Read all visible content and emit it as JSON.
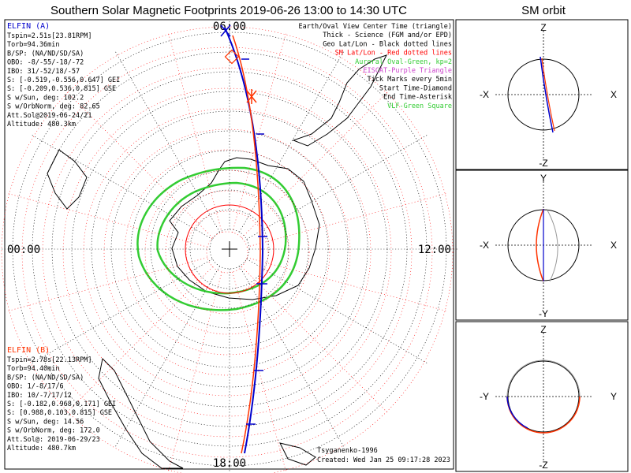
{
  "chart_data": {
    "type": "scatter",
    "title": "Southern Solar Magnetic Footprints 2019-06-26 13:00 to 14:30 UTC",
    "polar_plot": {
      "time_labels": {
        "top": "06:00",
        "left": "00:00",
        "right": "12:00",
        "bottom": "18:00"
      },
      "legend": [
        {
          "text": "Earth/Oval View Center Time (triangle)",
          "color": "#000000"
        },
        {
          "text": "Thick - Science (FGM and/or EPD)",
          "color": "#000000"
        },
        {
          "text": "Geo Lat/Lon - Black dotted lines",
          "color": "#000000"
        },
        {
          "text": "SM Lat/Lon - Red dotted lines",
          "color": "#ff0000"
        },
        {
          "text": "Auroral Oval-Green, kp=2",
          "color": "#33cc33"
        },
        {
          "text": "EISCAT-Purple Triangle",
          "color": "#cc44cc"
        },
        {
          "text": "Tick Marks every 5min",
          "color": "#000000"
        },
        {
          "text": "Start Time-Diamond",
          "color": "#000000"
        },
        {
          "text": "End Time-Asterisk",
          "color": "#000000"
        },
        {
          "text": "VLF-Green Square",
          "color": "#33cc33"
        }
      ],
      "spacecraft_a": {
        "name": "ELFIN (A)",
        "color": "#0000cc",
        "lines": [
          "Tspin=2.51s[23.81RPM]",
          "Torb=94.36min",
          "B/SP: (NA/ND/SD/SA)",
          "OBO: -8/-55/-18/-72",
          "IBO: 31/-52/18/-57",
          "S: [-0.519,-0.556,0.647] GEI",
          "S: [-0.209,0.536,0.815] GSE",
          "S w/Sun, deg: 102.2",
          "S w/OrbNorm, deg: 82.65",
          "Att.Sol@2019-06-24/21",
          "Altitude: 480.3km"
        ]
      },
      "spacecraft_b": {
        "name": "ELFIN (B)",
        "color": "#ff3300",
        "lines": [
          "Tspin=2.78s[22.13RPM]",
          "Torb=94.40min",
          "B/SP: (NA/ND/SD/SA)",
          "OBO: 1/-8/17/6",
          "IBO: 10/-7/17/12",
          "S: [-0.182,0.968,0.171] GEI",
          "S: [0.988,0.103,0.815] GSE",
          "S w/Sun, deg: 14.56",
          "S w/OrbNorm, deg: 172.0",
          "Att.Sol@: 2019-06-29/23",
          "Altitude: 480.7km"
        ]
      },
      "footer_author": "Tsyganenko-1996",
      "footer_created": "Created: Wed Jan 25 09:17:28 2023"
    },
    "orbit_panel": {
      "title": "SM orbit",
      "panels": [
        {
          "top": "Z",
          "bottom": "-Z",
          "left": "-X",
          "right": "X"
        },
        {
          "top": "Y",
          "bottom": "-Y",
          "left": "-X",
          "right": "X"
        },
        {
          "top": "Z",
          "bottom": "-Z",
          "left": "-Y",
          "right": "Y"
        }
      ]
    }
  }
}
